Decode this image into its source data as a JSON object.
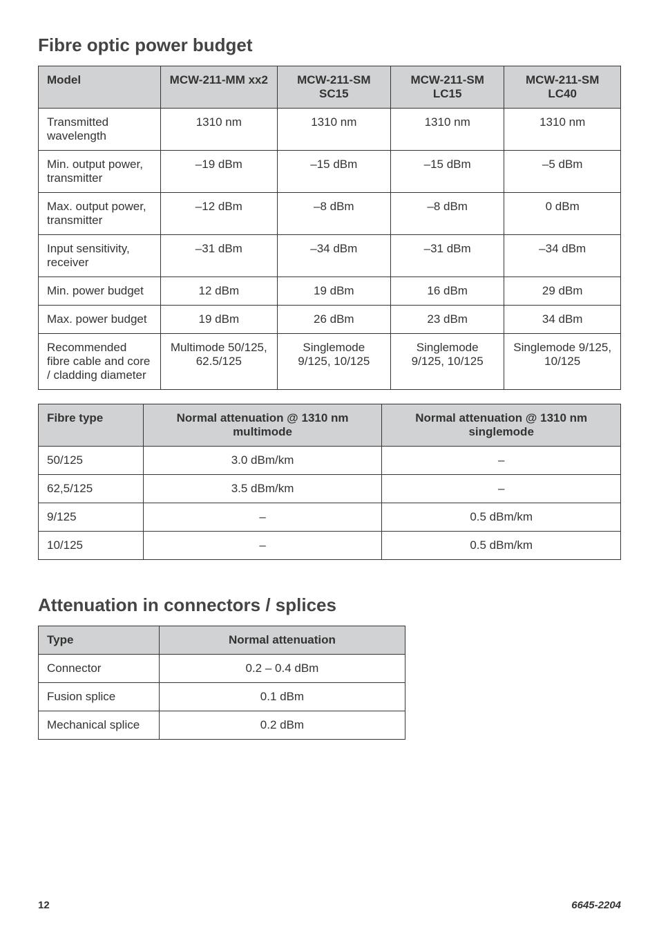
{
  "section1": {
    "title": "Fibre optic power budget",
    "headers": [
      "Model",
      "MCW-211-MM xx2",
      "MCW-211-SM SC15",
      "MCW-211-SM LC15",
      "MCW-211-SM LC40"
    ],
    "rows": [
      [
        "Transmitted wavelength",
        "1310 nm",
        "1310 nm",
        "1310 nm",
        "1310 nm"
      ],
      [
        "Min. output power, transmitter",
        "–19 dBm",
        "–15 dBm",
        "–15 dBm",
        "–5 dBm"
      ],
      [
        "Max. output power, transmitter",
        "–12 dBm",
        "–8 dBm",
        "–8 dBm",
        "0 dBm"
      ],
      [
        "Input sensitivity, receiver",
        "–31 dBm",
        "–34 dBm",
        "–31 dBm",
        "–34 dBm"
      ],
      [
        "Min. power budget",
        "12 dBm",
        "19 dBm",
        "16 dBm",
        "29 dBm"
      ],
      [
        "Max. power budget",
        "19 dBm",
        "26 dBm",
        "23 dBm",
        "34 dBm"
      ],
      [
        "Recommended fibre cable and core / cladding diameter",
        "Multimode 50/125, 62.5/125",
        "Singlemode 9/125, 10/125",
        "Singlemode 9/125, 10/125",
        "Singlemode 9/125, 10/125"
      ]
    ],
    "col_widths": [
      "21%",
      "20%",
      "19.5%",
      "19.5%",
      "20%"
    ]
  },
  "section2": {
    "headers": [
      "Fibre type",
      "Normal attenuation @ 1310 nm multimode",
      "Normal attenuation @ 1310 nm singlemode"
    ],
    "rows": [
      [
        "50/125",
        "3.0 dBm/km",
        "–"
      ],
      [
        "62,5/125",
        "3.5 dBm/km",
        "–"
      ],
      [
        "9/125",
        "–",
        "0.5 dBm/km"
      ],
      [
        "10/125",
        "–",
        "0.5 dBm/km"
      ]
    ],
    "col_widths": [
      "18%",
      "41%",
      "41%"
    ]
  },
  "section3": {
    "title": "Attenuation in connectors / splices",
    "headers": [
      "Type",
      "Normal attenuation"
    ],
    "rows": [
      [
        "Connector",
        "0.2 – 0.4 dBm"
      ],
      [
        "Fusion splice",
        "0.1 dBm"
      ],
      [
        "Mechanical splice",
        "0.2 dBm"
      ]
    ],
    "col_widths": [
      "33%",
      "67%"
    ]
  },
  "footer": {
    "page": "12",
    "doc": "6645-2204"
  }
}
